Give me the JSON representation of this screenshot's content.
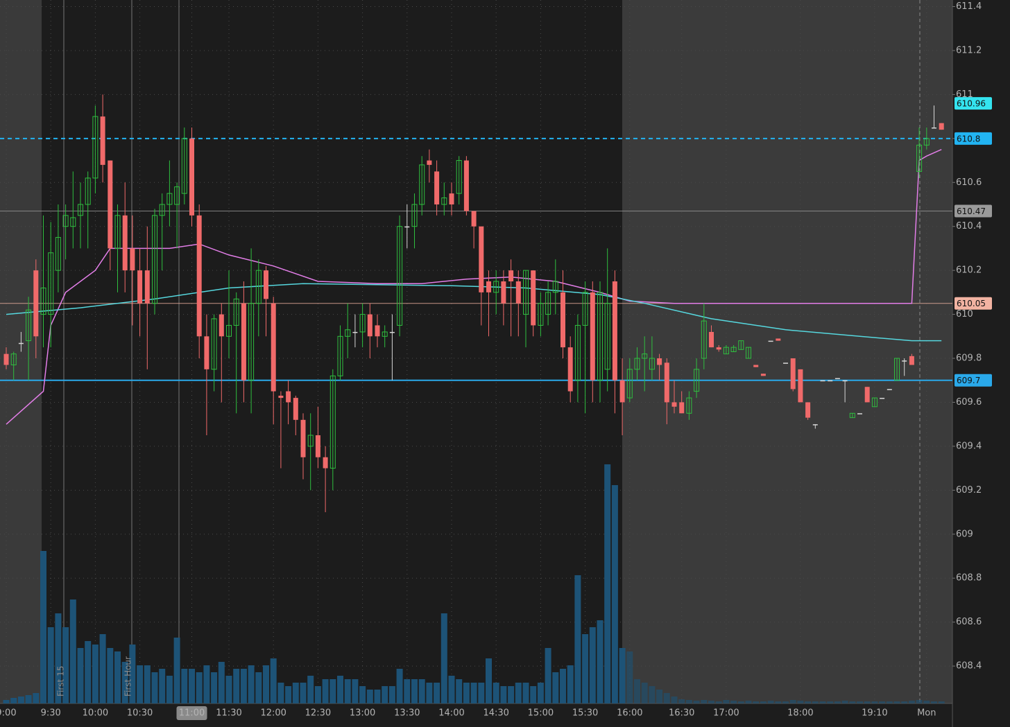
{
  "chart_data": {
    "type": "candlestick",
    "categories": [
      "9:00",
      null,
      null,
      null,
      null,
      null,
      "9:30",
      null,
      null,
      null,
      null,
      null,
      "10:00",
      null,
      null,
      null,
      null,
      null,
      "10:30",
      null,
      null,
      null,
      null,
      null,
      null,
      "11:00",
      null,
      null,
      null,
      null,
      "11:30",
      null,
      null,
      null,
      null,
      null,
      "12:00",
      null,
      null,
      null,
      null,
      null,
      "12:30",
      null,
      null,
      null,
      null,
      null,
      "13:00",
      null,
      null,
      null,
      null,
      null,
      "13:30",
      null,
      null,
      null,
      null,
      null,
      "14:00",
      null,
      null,
      null,
      null,
      null,
      "14:30",
      null,
      null,
      null,
      null,
      null,
      "15:00",
      null,
      null,
      null,
      null,
      null,
      "15:30",
      null,
      null,
      null,
      null,
      null,
      "16:00",
      null,
      null,
      null,
      null,
      null,
      null,
      "16:30",
      null,
      null,
      null,
      null,
      null,
      "17:00",
      null,
      null,
      null,
      null,
      null,
      null,
      null,
      null,
      null,
      "18:00",
      null,
      null,
      null,
      null,
      null,
      null,
      null,
      null,
      null,
      "19:10",
      null,
      null,
      null,
      null,
      null,
      null,
      "Mon",
      null,
      null
    ],
    "open": [
      609.82,
      609.77,
      609.87,
      609.88,
      610.2,
      610.0,
      610.0,
      610.2,
      610.4,
      610.4,
      610.45,
      610.5,
      610.62,
      610.9,
      610.7,
      610.3,
      610.45,
      610.3,
      610.2,
      610.2,
      610.05,
      610.45,
      610.5,
      610.5,
      610.55,
      610.8,
      610.45,
      609.9,
      609.75,
      610.0,
      609.9,
      609.95,
      610.05,
      609.7,
      610.05,
      610.2,
      610.05,
      609.63,
      609.65,
      609.62,
      609.52,
      609.4,
      609.45,
      609.35,
      609.3,
      609.72,
      609.9,
      609.92,
      609.92,
      610.0,
      609.95,
      609.9,
      609.92,
      609.95,
      610.4,
      610.4,
      610.5,
      610.7,
      610.65,
      610.5,
      610.55,
      610.55,
      610.7,
      610.47,
      610.4,
      610.15,
      610.1,
      610.15,
      610.2,
      610.15,
      610.0,
      610.2,
      609.95,
      610.0,
      610.1,
      610.1,
      609.85,
      609.7,
      609.95,
      610.1,
      609.7,
      609.75,
      610.15,
      609.7,
      609.62,
      609.75,
      609.8,
      609.75,
      609.8,
      609.78,
      609.6,
      609.6,
      609.55,
      609.65,
      609.8,
      609.92,
      609.85,
      609.82,
      609.83,
      609.84,
      609.8,
      609.77,
      609.73,
      609.88,
      609.89,
      609.78,
      609.8,
      609.75,
      609.6,
      609.5,
      609.7,
      609.7,
      609.71,
      609.7,
      609.53,
      609.55,
      609.67,
      609.58,
      609.62,
      609.66,
      609.7,
      609.79,
      609.81,
      610.65,
      610.77,
      610.85,
      610.87
    ],
    "high": [
      609.85,
      609.83,
      609.92,
      610.08,
      610.25,
      610.45,
      610.42,
      610.5,
      610.5,
      610.65,
      610.6,
      610.65,
      610.95,
      611.0,
      610.7,
      610.5,
      610.6,
      610.45,
      610.3,
      610.4,
      610.48,
      610.55,
      610.7,
      610.6,
      610.85,
      610.85,
      610.5,
      610.0,
      610.0,
      610.05,
      610.2,
      610.1,
      610.15,
      610.3,
      610.25,
      610.22,
      610.08,
      609.65,
      609.7,
      609.63,
      609.55,
      609.55,
      609.58,
      609.4,
      609.75,
      609.95,
      610.05,
      610.0,
      610.05,
      610.05,
      610.0,
      609.95,
      610.0,
      610.45,
      610.5,
      610.55,
      610.72,
      610.75,
      610.7,
      610.6,
      610.6,
      610.72,
      610.72,
      610.47,
      610.4,
      610.2,
      610.2,
      610.2,
      610.25,
      610.2,
      610.2,
      610.2,
      610.1,
      610.15,
      610.25,
      610.2,
      609.9,
      610.0,
      610.15,
      610.15,
      610.15,
      610.3,
      610.2,
      609.8,
      609.8,
      609.85,
      609.9,
      609.9,
      609.82,
      609.8,
      609.7,
      609.65,
      609.65,
      609.8,
      610.05,
      609.95,
      609.86,
      609.86,
      609.86,
      609.88,
      609.85,
      609.77,
      609.73,
      609.88,
      609.89,
      609.78,
      609.8,
      609.75,
      609.6,
      609.5,
      609.7,
      609.7,
      609.71,
      609.7,
      609.55,
      609.55,
      609.67,
      609.62,
      609.62,
      609.66,
      609.8,
      609.8,
      609.82,
      610.85,
      610.85,
      610.95,
      610.87
    ],
    "low": [
      609.75,
      609.7,
      609.83,
      609.7,
      609.8,
      609.85,
      609.85,
      610.1,
      610.25,
      610.3,
      610.3,
      610.3,
      610.55,
      610.6,
      610.2,
      610.1,
      610.1,
      609.95,
      609.9,
      609.75,
      610.0,
      610.2,
      610.4,
      610.3,
      610.5,
      610.4,
      609.8,
      609.45,
      609.65,
      609.6,
      609.8,
      609.55,
      609.6,
      609.55,
      609.9,
      609.9,
      609.5,
      609.3,
      609.5,
      609.45,
      609.25,
      609.2,
      609.3,
      609.1,
      609.2,
      609.7,
      609.8,
      609.85,
      609.85,
      609.8,
      609.85,
      609.85,
      609.7,
      609.9,
      610.3,
      610.3,
      610.45,
      610.6,
      610.45,
      610.45,
      610.45,
      610.5,
      610.45,
      610.3,
      609.95,
      609.9,
      610.0,
      609.95,
      609.9,
      609.9,
      609.85,
      609.9,
      609.9,
      609.95,
      610.0,
      609.8,
      609.6,
      609.6,
      609.55,
      609.6,
      609.6,
      609.65,
      609.55,
      609.45,
      609.6,
      609.7,
      609.65,
      609.7,
      609.7,
      609.5,
      609.55,
      609.55,
      609.52,
      609.62,
      609.75,
      609.85,
      609.83,
      609.82,
      609.83,
      609.84,
      609.8,
      609.76,
      609.72,
      609.88,
      609.88,
      609.78,
      609.65,
      609.6,
      609.52,
      609.48,
      609.7,
      609.7,
      609.71,
      609.6,
      609.53,
      609.55,
      609.6,
      609.58,
      609.62,
      609.66,
      609.7,
      609.72,
      609.77,
      610.62,
      610.75,
      610.85,
      610.84
    ],
    "close": [
      609.77,
      609.82,
      609.87,
      610.02,
      609.9,
      610.12,
      610.28,
      610.35,
      610.45,
      610.44,
      610.5,
      610.62,
      610.9,
      610.68,
      610.3,
      610.45,
      610.2,
      610.2,
      610.05,
      610.05,
      610.45,
      610.5,
      610.55,
      610.58,
      610.8,
      610.45,
      609.9,
      609.75,
      609.98,
      609.9,
      609.95,
      610.07,
      609.7,
      610.05,
      610.2,
      610.07,
      609.65,
      609.62,
      609.6,
      609.52,
      609.35,
      609.45,
      609.35,
      609.3,
      609.72,
      609.9,
      609.93,
      609.92,
      610.0,
      609.9,
      609.9,
      609.92,
      609.92,
      610.4,
      610.4,
      610.5,
      610.68,
      610.68,
      610.5,
      610.53,
      610.5,
      610.7,
      610.47,
      610.4,
      610.1,
      610.1,
      610.15,
      610.05,
      610.15,
      610.05,
      610.2,
      609.95,
      610.05,
      610.1,
      610.15,
      609.85,
      609.65,
      609.95,
      610.1,
      609.7,
      610.1,
      610.05,
      609.7,
      609.6,
      609.75,
      609.8,
      609.82,
      609.8,
      609.77,
      609.6,
      609.58,
      609.55,
      609.62,
      609.75,
      609.97,
      609.85,
      609.84,
      609.85,
      609.85,
      609.88,
      609.85,
      609.76,
      609.72,
      609.88,
      609.88,
      609.78,
      609.66,
      609.6,
      609.53,
      609.5,
      609.7,
      609.7,
      609.71,
      609.7,
      609.55,
      609.55,
      609.6,
      609.62,
      609.62,
      609.66,
      609.8,
      609.79,
      609.77,
      610.77,
      610.8,
      610.85,
      610.84
    ],
    "volume": [
      5,
      8,
      10,
      12,
      15,
      220,
      110,
      130,
      110,
      150,
      80,
      90,
      85,
      100,
      80,
      75,
      60,
      85,
      55,
      55,
      45,
      50,
      40,
      95,
      50,
      50,
      45,
      55,
      45,
      60,
      40,
      50,
      50,
      55,
      45,
      55,
      65,
      30,
      25,
      30,
      30,
      40,
      25,
      35,
      35,
      40,
      35,
      35,
      25,
      20,
      20,
      25,
      25,
      50,
      35,
      35,
      35,
      30,
      30,
      130,
      40,
      35,
      30,
      30,
      30,
      65,
      30,
      25,
      25,
      30,
      30,
      25,
      30,
      80,
      45,
      50,
      55,
      185,
      100,
      110,
      120,
      345,
      315,
      80,
      75,
      35,
      30,
      25,
      20,
      15,
      10,
      6,
      5,
      4,
      5,
      4,
      3,
      5,
      4,
      3,
      4,
      3,
      3,
      4,
      3,
      3,
      5,
      4,
      3,
      3,
      3,
      3,
      3,
      4,
      3,
      3,
      3,
      3,
      3,
      3,
      3,
      3,
      4,
      5,
      4,
      3,
      3
    ],
    "lines": [
      {
        "color": "#e37ee8",
        "x": [
          0,
          5,
          6,
          8,
          12,
          14,
          18,
          22,
          26,
          30,
          36,
          42,
          50,
          56,
          62,
          68,
          74,
          80,
          84,
          90,
          100,
          122,
          123,
          124,
          126
        ],
        "values": [
          609.5,
          609.65,
          609.95,
          610.1,
          610.2,
          610.3,
          610.3,
          610.3,
          610.32,
          610.27,
          610.22,
          610.15,
          610.14,
          610.14,
          610.16,
          610.17,
          610.15,
          610.1,
          610.06,
          610.05,
          610.05,
          610.05,
          610.7,
          610.72,
          610.75
        ]
      },
      {
        "color": "#56d8df",
        "x": [
          0,
          10,
          20,
          30,
          40,
          60,
          70,
          80,
          86,
          95,
          105,
          115,
          122,
          126
        ],
        "values": [
          610.0,
          610.03,
          610.07,
          610.12,
          610.14,
          610.13,
          610.12,
          610.09,
          610.05,
          609.98,
          609.93,
          609.9,
          609.88,
          609.88
        ]
      }
    ],
    "levels": [
      {
        "value": 610.96,
        "color": "#34e4f0",
        "line": "none"
      },
      {
        "value": 610.8,
        "color": "#22b4f2",
        "line": "dashed"
      },
      {
        "value": 610.47,
        "color": "#9a9a9a",
        "line": "thin"
      },
      {
        "value": 610.05,
        "color": "#f2b3a2",
        "line": "thin"
      },
      {
        "value": 609.7,
        "color": "#2aa9ea",
        "line": "solid"
      }
    ],
    "annotations": [
      "First 15",
      "First Hour"
    ],
    "up_color": "#2fbf3f",
    "down_color": "#f06a6a",
    "doji_color": "#d8d8d8",
    "volume_color": "#1d5377",
    "ylim": [
      608.23,
      611.43
    ],
    "yticks": [
      608.4,
      608.6,
      608.8,
      609,
      609.2,
      609.4,
      609.6,
      609.8,
      610,
      610.2,
      610.4,
      610.6,
      610.8,
      611,
      611.2,
      611.4
    ],
    "grid": true
  }
}
